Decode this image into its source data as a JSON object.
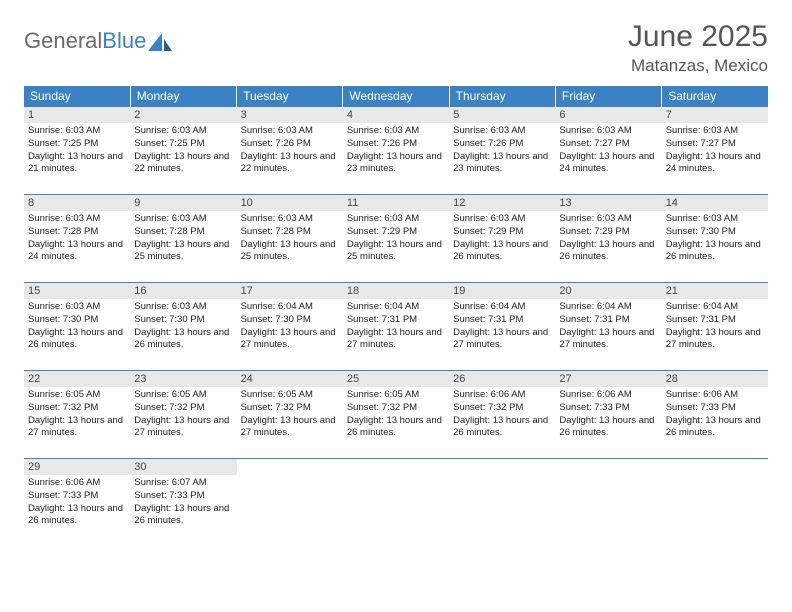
{
  "logo": {
    "text_gray": "General",
    "text_blue": "Blue"
  },
  "title": "June 2025",
  "location": "Matanzas, Mexico",
  "colors": {
    "header_bg": "#3b82c4",
    "header_text": "#ffffff",
    "daynum_bg": "#e8e8e8",
    "border": "#3b82c4",
    "title_text": "#555555",
    "logo_gray": "#6b6b6b",
    "logo_blue": "#3b82c4"
  },
  "day_headers": [
    "Sunday",
    "Monday",
    "Tuesday",
    "Wednesday",
    "Thursday",
    "Friday",
    "Saturday"
  ],
  "weeks": [
    [
      {
        "n": "1",
        "sr": "6:03 AM",
        "ss": "7:25 PM",
        "dl": "13 hours and 21 minutes."
      },
      {
        "n": "2",
        "sr": "6:03 AM",
        "ss": "7:25 PM",
        "dl": "13 hours and 22 minutes."
      },
      {
        "n": "3",
        "sr": "6:03 AM",
        "ss": "7:26 PM",
        "dl": "13 hours and 22 minutes."
      },
      {
        "n": "4",
        "sr": "6:03 AM",
        "ss": "7:26 PM",
        "dl": "13 hours and 23 minutes."
      },
      {
        "n": "5",
        "sr": "6:03 AM",
        "ss": "7:26 PM",
        "dl": "13 hours and 23 minutes."
      },
      {
        "n": "6",
        "sr": "6:03 AM",
        "ss": "7:27 PM",
        "dl": "13 hours and 24 minutes."
      },
      {
        "n": "7",
        "sr": "6:03 AM",
        "ss": "7:27 PM",
        "dl": "13 hours and 24 minutes."
      }
    ],
    [
      {
        "n": "8",
        "sr": "6:03 AM",
        "ss": "7:28 PM",
        "dl": "13 hours and 24 minutes."
      },
      {
        "n": "9",
        "sr": "6:03 AM",
        "ss": "7:28 PM",
        "dl": "13 hours and 25 minutes."
      },
      {
        "n": "10",
        "sr": "6:03 AM",
        "ss": "7:28 PM",
        "dl": "13 hours and 25 minutes."
      },
      {
        "n": "11",
        "sr": "6:03 AM",
        "ss": "7:29 PM",
        "dl": "13 hours and 25 minutes."
      },
      {
        "n": "12",
        "sr": "6:03 AM",
        "ss": "7:29 PM",
        "dl": "13 hours and 26 minutes."
      },
      {
        "n": "13",
        "sr": "6:03 AM",
        "ss": "7:29 PM",
        "dl": "13 hours and 26 minutes."
      },
      {
        "n": "14",
        "sr": "6:03 AM",
        "ss": "7:30 PM",
        "dl": "13 hours and 26 minutes."
      }
    ],
    [
      {
        "n": "15",
        "sr": "6:03 AM",
        "ss": "7:30 PM",
        "dl": "13 hours and 26 minutes."
      },
      {
        "n": "16",
        "sr": "6:03 AM",
        "ss": "7:30 PM",
        "dl": "13 hours and 26 minutes."
      },
      {
        "n": "17",
        "sr": "6:04 AM",
        "ss": "7:30 PM",
        "dl": "13 hours and 27 minutes."
      },
      {
        "n": "18",
        "sr": "6:04 AM",
        "ss": "7:31 PM",
        "dl": "13 hours and 27 minutes."
      },
      {
        "n": "19",
        "sr": "6:04 AM",
        "ss": "7:31 PM",
        "dl": "13 hours and 27 minutes."
      },
      {
        "n": "20",
        "sr": "6:04 AM",
        "ss": "7:31 PM",
        "dl": "13 hours and 27 minutes."
      },
      {
        "n": "21",
        "sr": "6:04 AM",
        "ss": "7:31 PM",
        "dl": "13 hours and 27 minutes."
      }
    ],
    [
      {
        "n": "22",
        "sr": "6:05 AM",
        "ss": "7:32 PM",
        "dl": "13 hours and 27 minutes."
      },
      {
        "n": "23",
        "sr": "6:05 AM",
        "ss": "7:32 PM",
        "dl": "13 hours and 27 minutes."
      },
      {
        "n": "24",
        "sr": "6:05 AM",
        "ss": "7:32 PM",
        "dl": "13 hours and 27 minutes."
      },
      {
        "n": "25",
        "sr": "6:05 AM",
        "ss": "7:32 PM",
        "dl": "13 hours and 26 minutes."
      },
      {
        "n": "26",
        "sr": "6:06 AM",
        "ss": "7:32 PM",
        "dl": "13 hours and 26 minutes."
      },
      {
        "n": "27",
        "sr": "6:06 AM",
        "ss": "7:33 PM",
        "dl": "13 hours and 26 minutes."
      },
      {
        "n": "28",
        "sr": "6:06 AM",
        "ss": "7:33 PM",
        "dl": "13 hours and 26 minutes."
      }
    ],
    [
      {
        "n": "29",
        "sr": "6:06 AM",
        "ss": "7:33 PM",
        "dl": "13 hours and 26 minutes."
      },
      {
        "n": "30",
        "sr": "6:07 AM",
        "ss": "7:33 PM",
        "dl": "13 hours and 26 minutes."
      },
      null,
      null,
      null,
      null,
      null
    ]
  ],
  "labels": {
    "sunrise": "Sunrise:",
    "sunset": "Sunset:",
    "daylight": "Daylight:"
  }
}
